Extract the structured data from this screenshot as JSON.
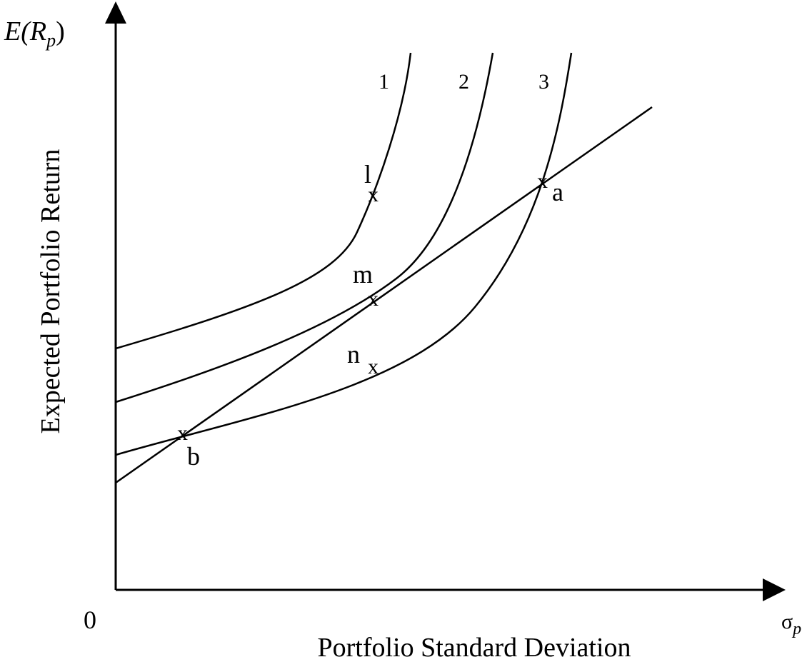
{
  "axes": {
    "y_label_symbol": "E(",
    "y_label_var": "R",
    "y_label_sub": "p",
    "y_label_close": ")",
    "y_title": "Expected Portfolio Return",
    "x_label_symbol": "σ",
    "x_label_sub": "p",
    "x_title": "Portfolio Standard Deviation",
    "origin": "0"
  },
  "curves": [
    {
      "label": "1"
    },
    {
      "label": "2"
    },
    {
      "label": "3"
    }
  ],
  "points": {
    "l": {
      "marker": "x",
      "label": "l"
    },
    "m": {
      "marker": "x",
      "label": "m"
    },
    "n": {
      "marker": "x",
      "label": "n"
    },
    "a": {
      "marker": "x",
      "label": "a"
    },
    "b": {
      "marker": "x",
      "label": "b"
    }
  },
  "colors": {
    "ink": "#000000",
    "background": "#ffffff"
  }
}
